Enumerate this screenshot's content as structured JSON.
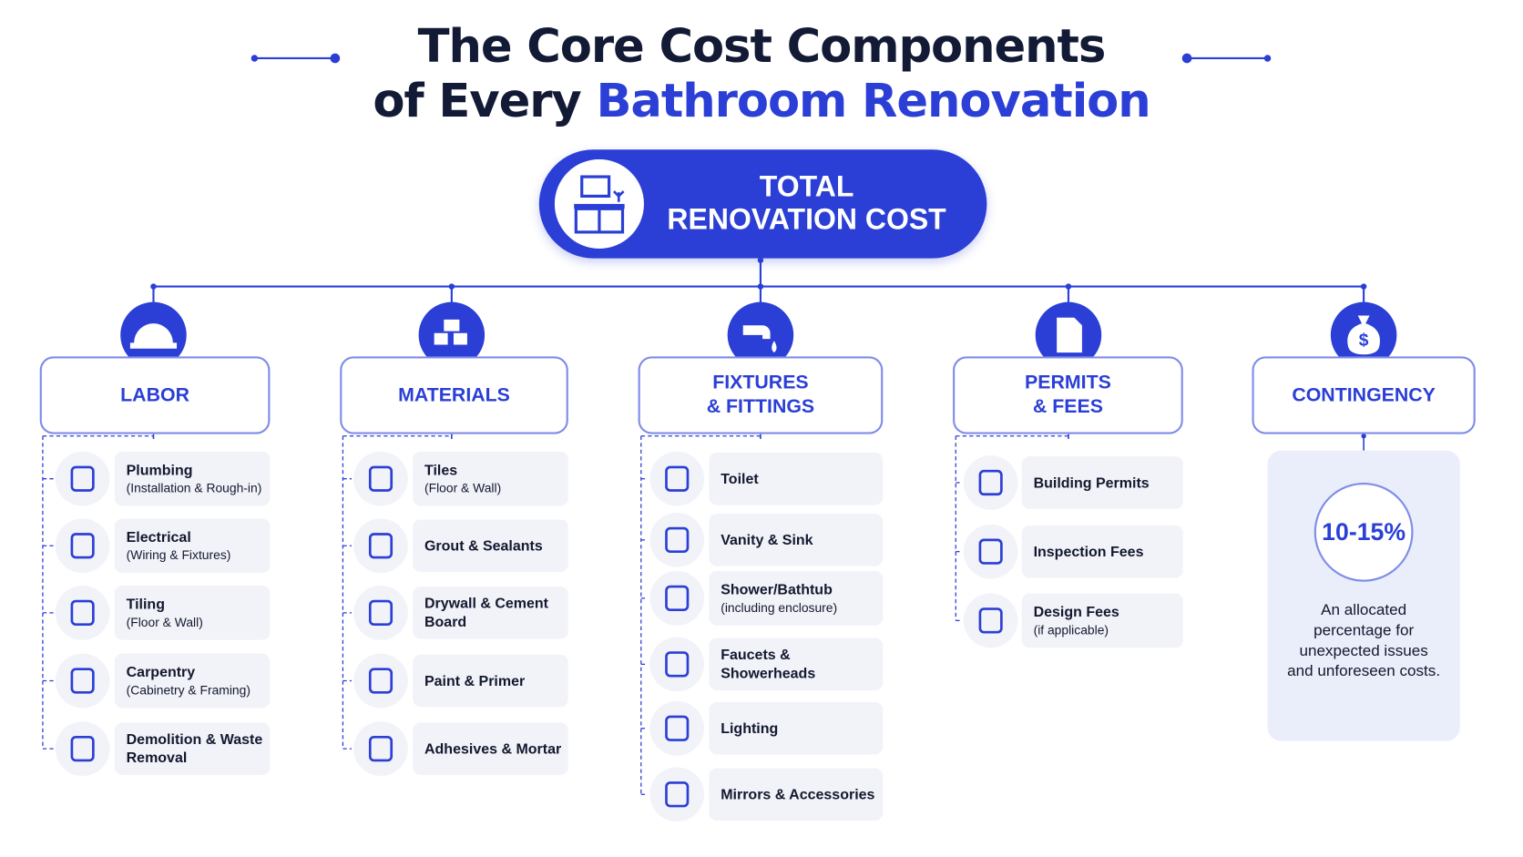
{
  "title": {
    "line1": "The Core Cost Components",
    "line2_prefix": "of Every",
    "line2_highlight": "Bathroom Renovation"
  },
  "root": {
    "lines": [
      "TOTAL",
      "RENOVATION COST"
    ]
  },
  "columns": [
    {
      "heading": [
        "LABOR"
      ],
      "items": [
        {
          "title": "Plumbing",
          "note": "(Installation & Rough-in)"
        },
        {
          "title": "Electrical",
          "note": "(Wiring & Fixtures)"
        },
        {
          "title": "Tiling",
          "note": "(Floor & Wall)"
        },
        {
          "title": "Carpentry",
          "note": "(Cabinetry & Framing)"
        },
        {
          "title": "Demolition & Waste Removal"
        }
      ]
    },
    {
      "heading": [
        "MATERIALS"
      ],
      "items": [
        {
          "title": "Tiles",
          "note": "(Floor & Wall)"
        },
        {
          "title": "Grout & Sealants"
        },
        {
          "title": "Drywall & Cement Board"
        },
        {
          "title": "Paint & Primer"
        },
        {
          "title": "Adhesives & Mortar"
        }
      ]
    },
    {
      "heading": [
        "FIXTURES",
        "& FITTINGS"
      ],
      "items": [
        {
          "title": "Toilet"
        },
        {
          "title": "Vanity & Sink"
        },
        {
          "title": "Shower/Bathtub",
          "note": "(including enclosure)"
        },
        {
          "title": "Faucets & Showerheads"
        },
        {
          "title": "Lighting"
        },
        {
          "title": "Mirrors & Accessories"
        }
      ]
    },
    {
      "heading": [
        "PERMITS",
        "& FEES"
      ],
      "items": [
        {
          "title": "Building Permits"
        },
        {
          "title": "Inspection Fees"
        },
        {
          "title": "Design Fees",
          "note": "(if applicable)"
        }
      ]
    }
  ],
  "contingency": {
    "heading": "CONTINGENCY",
    "range": "10-15%",
    "description": "An allocated percentage for unexpected issues and unforeseen costs."
  }
}
